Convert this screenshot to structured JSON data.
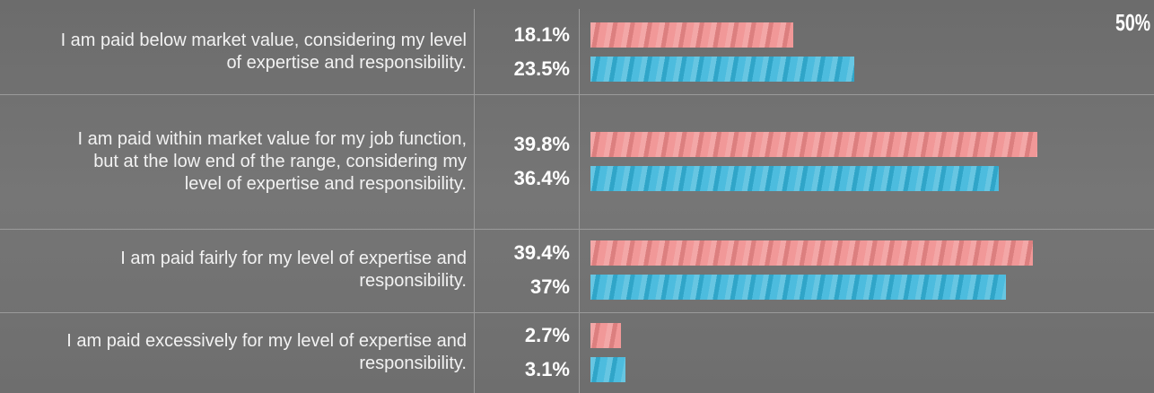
{
  "chart_data": {
    "type": "bar",
    "orientation": "horizontal",
    "categories": [
      "I am paid below market value, considering my level of expertise and responsibility.",
      "I am paid within market value for my job function, but at the low end of the range, considering my level of expertise and responsibility.",
      "I am paid fairly for my level of expertise and responsibility.",
      "I am paid excessively for my level of expertise and responsibility."
    ],
    "series": [
      {
        "color": "#ef8a8a",
        "values": [
          18.1,
          39.8,
          39.4,
          2.7
        ],
        "value_labels": [
          "18.1%",
          "39.8%",
          "39.4%",
          "2.7%"
        ]
      },
      {
        "color": "#34b3d9",
        "values": [
          23.5,
          36.4,
          37,
          3.1
        ],
        "value_labels": [
          "23.5%",
          "36.4%",
          "37%",
          "3.1%"
        ]
      }
    ],
    "xlim": [
      0,
      50
    ],
    "xticks": [
      {
        "value": 50,
        "label": "50%"
      }
    ]
  }
}
